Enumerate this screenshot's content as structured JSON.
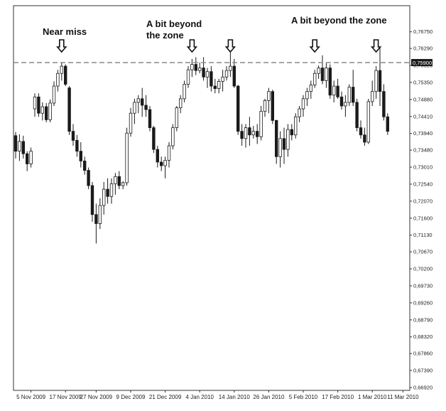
{
  "chart_data": {
    "type": "candlestick",
    "title": "",
    "xlabel": "",
    "ylabel": "",
    "ylim": [
      0.6692,
      0.7698
    ],
    "grid": false,
    "yticks": [
      "0,76750",
      "0,76290",
      "0,75820",
      "0,75350",
      "0,74880",
      "0,74410",
      "0,73940",
      "0,73480",
      "0,73010",
      "0,72540",
      "0,72070",
      "0,71600",
      "0,71130",
      "0,70670",
      "0,70200",
      "0,69730",
      "0,69260",
      "0,68790",
      "0,68320",
      "0,67860",
      "0,67390",
      "0,66920"
    ],
    "ytick_values": [
      0.7675,
      0.7629,
      0.7582,
      0.7535,
      0.7488,
      0.7441,
      0.7394,
      0.7348,
      0.7301,
      0.7254,
      0.7207,
      0.716,
      0.7113,
      0.7067,
      0.702,
      0.6973,
      0.6926,
      0.6879,
      0.6832,
      0.6786,
      0.6739,
      0.6692
    ],
    "xticks": [
      "5 Nov 2009",
      "17 Nov 2009",
      "27 Nov 2009",
      "9 Dec 2009",
      "21 Dec 2009",
      "4 Jan 2010",
      "14 Jan 2010",
      "26 Jan 2010",
      "5 Feb 2010",
      "17 Feb 2010",
      "1 Mar 2010",
      "11 Mar 2010"
    ],
    "xtick_index": [
      4,
      13,
      21,
      30,
      39,
      48,
      57,
      66,
      75,
      84,
      93,
      101
    ],
    "resistance_level": 0.759,
    "resistance_label": "0,75900",
    "candles": [
      [
        0.7388,
        0.7398,
        0.7325,
        0.7345
      ],
      [
        0.7345,
        0.7392,
        0.7318,
        0.7372
      ],
      [
        0.7372,
        0.7388,
        0.7325,
        0.7338
      ],
      [
        0.7338,
        0.7345,
        0.729,
        0.731
      ],
      [
        0.731,
        0.7355,
        0.73,
        0.7345
      ],
      [
        0.7462,
        0.7505,
        0.744,
        0.7495
      ],
      [
        0.7495,
        0.7505,
        0.744,
        0.745
      ],
      [
        0.745,
        0.748,
        0.743,
        0.7468
      ],
      [
        0.7468,
        0.7478,
        0.7425,
        0.7432
      ],
      [
        0.7432,
        0.7488,
        0.7425,
        0.7478
      ],
      [
        0.7478,
        0.7538,
        0.747,
        0.7525
      ],
      [
        0.7525,
        0.757,
        0.751,
        0.756
      ],
      [
        0.756,
        0.759,
        0.754,
        0.758
      ],
      [
        0.758,
        0.7585,
        0.7525,
        0.753
      ],
      [
        0.752,
        0.7525,
        0.739,
        0.74
      ],
      [
        0.74,
        0.742,
        0.736,
        0.7375
      ],
      [
        0.7375,
        0.739,
        0.733,
        0.7345
      ],
      [
        0.7345,
        0.737,
        0.73,
        0.7318
      ],
      [
        0.7318,
        0.733,
        0.728,
        0.7292
      ],
      [
        0.7292,
        0.73,
        0.724,
        0.725
      ],
      [
        0.725,
        0.726,
        0.715,
        0.717
      ],
      [
        0.717,
        0.72,
        0.709,
        0.7145
      ],
      [
        0.7145,
        0.7215,
        0.713,
        0.7195
      ],
      [
        0.7195,
        0.726,
        0.717,
        0.724
      ],
      [
        0.724,
        0.727,
        0.72,
        0.722
      ],
      [
        0.722,
        0.727,
        0.72,
        0.7255
      ],
      [
        0.7255,
        0.7285,
        0.7225,
        0.7275
      ],
      [
        0.7275,
        0.729,
        0.724,
        0.725
      ],
      [
        0.725,
        0.7262,
        0.724,
        0.7258
      ],
      [
        0.7258,
        0.741,
        0.725,
        0.7395
      ],
      [
        0.7395,
        0.7465,
        0.7385,
        0.745
      ],
      [
        0.745,
        0.749,
        0.742,
        0.748
      ],
      [
        0.748,
        0.75,
        0.745,
        0.749
      ],
      [
        0.749,
        0.752,
        0.744,
        0.7472
      ],
      [
        0.7472,
        0.75,
        0.744,
        0.746
      ],
      [
        0.746,
        0.747,
        0.74,
        0.741
      ],
      [
        0.741,
        0.7415,
        0.734,
        0.735
      ],
      [
        0.735,
        0.736,
        0.73,
        0.7315
      ],
      [
        0.7315,
        0.733,
        0.729,
        0.7305
      ],
      [
        0.7305,
        0.733,
        0.727,
        0.732
      ],
      [
        0.732,
        0.737,
        0.73,
        0.736
      ],
      [
        0.736,
        0.742,
        0.735,
        0.741
      ],
      [
        0.741,
        0.747,
        0.74,
        0.7465
      ],
      [
        0.7465,
        0.75,
        0.745,
        0.749
      ],
      [
        0.749,
        0.754,
        0.748,
        0.753
      ],
      [
        0.753,
        0.758,
        0.752,
        0.757
      ],
      [
        0.757,
        0.76,
        0.755,
        0.7585
      ],
      [
        0.7585,
        0.7605,
        0.7555,
        0.7568
      ],
      [
        0.7568,
        0.759,
        0.756,
        0.7575
      ],
      [
        0.7575,
        0.7605,
        0.754,
        0.755
      ],
      [
        0.755,
        0.7575,
        0.752,
        0.7565
      ],
      [
        0.7565,
        0.758,
        0.751,
        0.7525
      ],
      [
        0.7525,
        0.7545,
        0.7505,
        0.7518
      ],
      [
        0.7518,
        0.7545,
        0.7505,
        0.7538
      ],
      [
        0.7538,
        0.757,
        0.751,
        0.755
      ],
      [
        0.755,
        0.758,
        0.754,
        0.7568
      ],
      [
        0.7568,
        0.764,
        0.755,
        0.758
      ],
      [
        0.758,
        0.76,
        0.752,
        0.7525
      ],
      [
        0.7525,
        0.7528,
        0.739,
        0.74
      ],
      [
        0.74,
        0.742,
        0.736,
        0.738
      ],
      [
        0.738,
        0.742,
        0.7355,
        0.741
      ],
      [
        0.741,
        0.744,
        0.736,
        0.739
      ],
      [
        0.739,
        0.7415,
        0.738,
        0.74
      ],
      [
        0.74,
        0.742,
        0.7365,
        0.7385
      ],
      [
        0.7385,
        0.747,
        0.7375,
        0.7455
      ],
      [
        0.7455,
        0.749,
        0.744,
        0.7485
      ],
      [
        0.7485,
        0.752,
        0.745,
        0.751
      ],
      [
        0.751,
        0.7515,
        0.742,
        0.743
      ],
      [
        0.743,
        0.7432,
        0.731,
        0.733
      ],
      [
        0.733,
        0.74,
        0.73,
        0.738
      ],
      [
        0.738,
        0.741,
        0.731,
        0.735
      ],
      [
        0.735,
        0.742,
        0.733,
        0.7405
      ],
      [
        0.7405,
        0.742,
        0.7375,
        0.739
      ],
      [
        0.739,
        0.745,
        0.738,
        0.744
      ],
      [
        0.744,
        0.747,
        0.7425,
        0.7462
      ],
      [
        0.7462,
        0.75,
        0.744,
        0.749
      ],
      [
        0.749,
        0.752,
        0.747,
        0.751
      ],
      [
        0.751,
        0.754,
        0.749,
        0.7528
      ],
      [
        0.7528,
        0.757,
        0.752,
        0.756
      ],
      [
        0.756,
        0.7582,
        0.7545,
        0.7575
      ],
      [
        0.7575,
        0.761,
        0.753,
        0.754
      ],
      [
        0.754,
        0.759,
        0.752,
        0.7575
      ],
      [
        0.7575,
        0.7585,
        0.749,
        0.75
      ],
      [
        0.75,
        0.754,
        0.748,
        0.7525
      ],
      [
        0.7525,
        0.7545,
        0.749,
        0.7495
      ],
      [
        0.7495,
        0.751,
        0.746,
        0.747
      ],
      [
        0.747,
        0.75,
        0.744,
        0.748
      ],
      [
        0.748,
        0.753,
        0.747,
        0.7522
      ],
      [
        0.7522,
        0.757,
        0.747,
        0.748
      ],
      [
        0.748,
        0.749,
        0.74,
        0.741
      ],
      [
        0.741,
        0.743,
        0.738,
        0.739
      ],
      [
        0.739,
        0.741,
        0.736,
        0.737
      ],
      [
        0.737,
        0.749,
        0.7365,
        0.7482
      ],
      [
        0.7482,
        0.754,
        0.747,
        0.751
      ],
      [
        0.751,
        0.758,
        0.749,
        0.7568
      ],
      [
        0.7568,
        0.763,
        0.747,
        0.751
      ],
      [
        0.751,
        0.753,
        0.743,
        0.744
      ],
      [
        0.744,
        0.745,
        0.739,
        0.74
      ]
    ]
  },
  "annotations": {
    "near_miss": "Near miss",
    "beyond_1_line1": "A bit beyond",
    "beyond_1_line2": "the zone",
    "beyond_2": "A bit beyond the zone"
  },
  "arrows": [
    {
      "name": "down-arrow-icon",
      "candle": 12
    },
    {
      "name": "down-arrow-icon",
      "candle": 46
    },
    {
      "name": "down-arrow-icon",
      "candle": 56
    },
    {
      "name": "down-arrow-icon",
      "candle": 78
    },
    {
      "name": "down-arrow-icon",
      "candle": 94
    }
  ],
  "colors": {
    "bull_fill": "#ffffff",
    "bear_fill": "#1a1a1a",
    "candle_line": "#1a1a1a",
    "resistance": "#8a8a8a",
    "label_bg": "#1a1a1a",
    "label_text": "#ffffff"
  }
}
